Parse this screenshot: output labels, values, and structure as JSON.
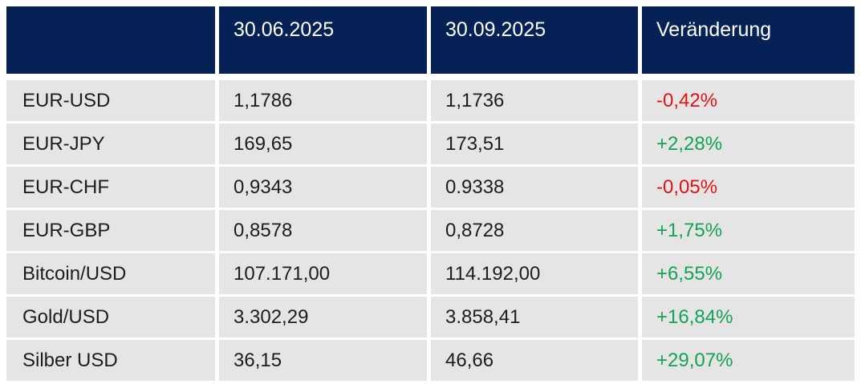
{
  "chart_data": {
    "type": "table",
    "title": "",
    "columns": [
      "",
      "30.06.2025",
      "30.09.2025",
      "Veränderung"
    ],
    "rows": [
      {
        "label": "EUR-USD",
        "v1": "1,1786",
        "v2": "1,1736",
        "change": "-0,42%",
        "direction": "down"
      },
      {
        "label": "EUR-JPY",
        "v1": "169,65",
        "v2": "173,51",
        "change": "+2,28%",
        "direction": "up"
      },
      {
        "label": "EUR-CHF",
        "v1": "0,9343",
        "v2": "0.9338",
        "change": "-0,05%",
        "direction": "down"
      },
      {
        "label": "EUR-GBP",
        "v1": "0,8578",
        "v2": "0,8728",
        "change": "+1,75%",
        "direction": "up"
      },
      {
        "label": "Bitcoin/USD",
        "v1": "107.171,00",
        "v2": "114.192,00",
        "change": "+6,55%",
        "direction": "up"
      },
      {
        "label": "Gold/USD",
        "v1": "3.302,29",
        "v2": "3.858,41",
        "change": "+16,84%",
        "direction": "up"
      },
      {
        "label": "Silber USD",
        "v1": "36,15",
        "v2": "46,66",
        "change": "+29,07%",
        "direction": "up"
      }
    ]
  },
  "colors": {
    "header_bg": "#052155",
    "header_text": "#ffffff",
    "row_bg": "#e5e5e5",
    "body_text": "#1d1d1d",
    "positive": "#14a356",
    "negative": "#e31212"
  }
}
